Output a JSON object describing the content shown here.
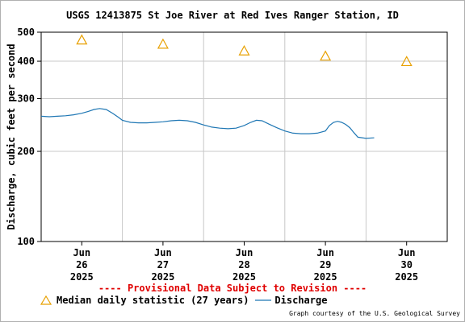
{
  "chart_data": {
    "type": "line",
    "title": "USGS 12413875 St Joe River at Red Ives Ranger Station, ID",
    "ylabel": "Discharge, cubic feet per second",
    "y_scale": "log",
    "ylim": [
      100,
      500
    ],
    "y_ticks": [
      "100",
      "200",
      "300",
      "400",
      "500"
    ],
    "x_tick_labels": [
      {
        "month": "Jun",
        "day": "26",
        "year": "2025"
      },
      {
        "month": "Jun",
        "day": "27",
        "year": "2025"
      },
      {
        "month": "Jun",
        "day": "28",
        "year": "2025"
      },
      {
        "month": "Jun",
        "day": "29",
        "year": "2025"
      },
      {
        "month": "Jun",
        "day": "30",
        "year": "2025"
      }
    ],
    "x_unit": "days from 2025-06-26 00:00",
    "xlim": [
      -0.5,
      4.5
    ],
    "grid": true,
    "series": [
      {
        "name": "Discharge",
        "color": "#1f77b4",
        "x": [
          -0.5,
          -0.4,
          -0.3,
          -0.2,
          -0.1,
          0.0,
          0.08,
          0.15,
          0.22,
          0.3,
          0.38,
          0.45,
          0.5,
          0.6,
          0.7,
          0.8,
          0.9,
          1.0,
          1.1,
          1.2,
          1.3,
          1.4,
          1.5,
          1.6,
          1.7,
          1.8,
          1.9,
          2.0,
          2.08,
          2.15,
          2.22,
          2.3,
          2.4,
          2.5,
          2.6,
          2.7,
          2.8,
          2.9,
          3.0,
          3.05,
          3.1,
          3.15,
          3.2,
          3.25,
          3.3,
          3.35,
          3.4,
          3.5,
          3.6
        ],
        "values": [
          262,
          261,
          262,
          263,
          265,
          268,
          272,
          276,
          278,
          276,
          268,
          260,
          254,
          250,
          249,
          249,
          250,
          251,
          253,
          254,
          253,
          250,
          245,
          241,
          239,
          238,
          239,
          244,
          250,
          254,
          253,
          247,
          240,
          234,
          230,
          229,
          229,
          230,
          234,
          244,
          250,
          252,
          250,
          246,
          240,
          231,
          223,
          221,
          222
        ]
      }
    ],
    "markers": {
      "name": "Median daily statistic (27 years)",
      "symbol": "triangle",
      "color": "#e8a000",
      "x": [
        0.0,
        1.0,
        2.0,
        3.0,
        4.0
      ],
      "values": [
        471,
        456,
        433,
        416,
        399
      ]
    }
  },
  "provisional_note": "---- Provisional Data Subject to Revision ----",
  "legend": {
    "median_label": "Median daily statistic (27 years)",
    "discharge_label": "Discharge"
  },
  "courtesy": "Graph courtesy of the U.S. Geological Survey"
}
